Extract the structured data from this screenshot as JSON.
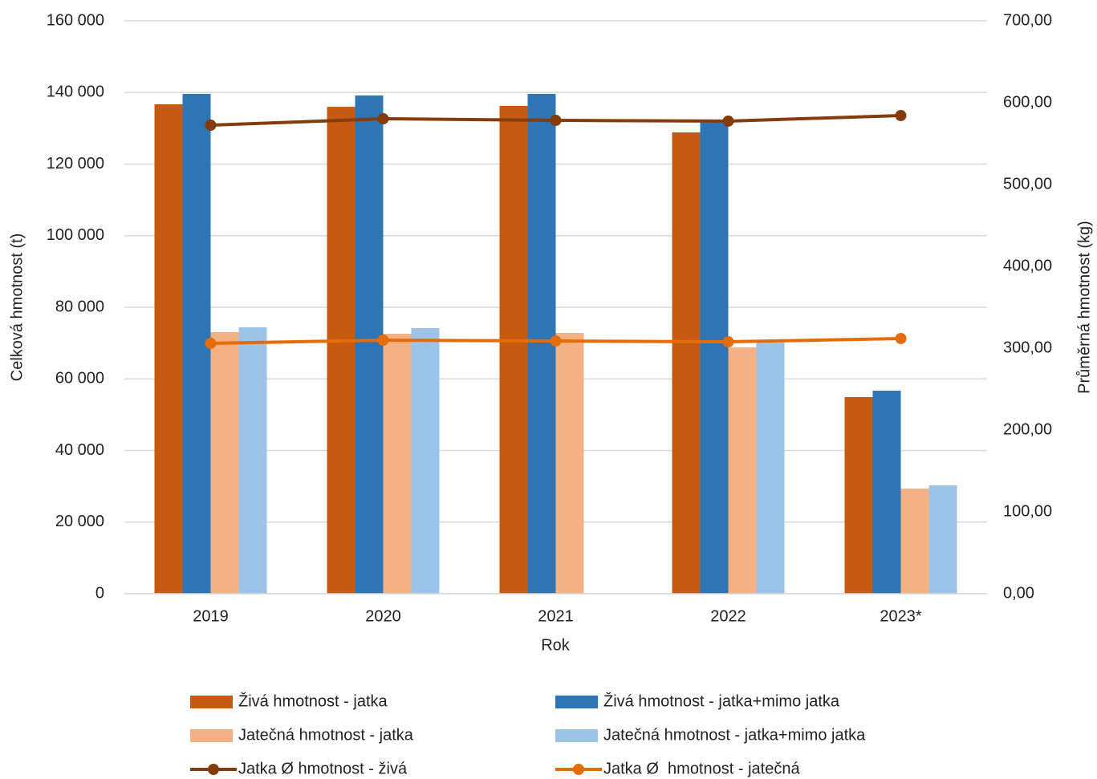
{
  "chart_data": {
    "type": "bar",
    "x_label": "Rok",
    "y_label": "Celková hmotnost (t)",
    "y2_label": "Průměrná hmotnost (kg)",
    "categories": [
      "2019",
      "2020",
      "2021",
      "2022",
      "2023*"
    ],
    "ylim": [
      0,
      160000
    ],
    "yticks": [
      0,
      {
        "value": 20000,
        "label": "20 000"
      },
      {
        "value": 40000,
        "label": "40 000"
      },
      {
        "value": 60000,
        "label": "60 000"
      },
      {
        "value": 80000,
        "label": "80 000"
      },
      {
        "value": 100000,
        "label": "100 000"
      },
      {
        "value": 120000,
        "label": "120 000"
      },
      {
        "value": 140000,
        "label": "140 000"
      },
      {
        "value": 160000,
        "label": "160 000"
      }
    ],
    "y2lim": [
      0,
      700
    ],
    "y2ticks": [
      {
        "value": 0,
        "label": "0,00"
      },
      {
        "value": 100,
        "label": "100,00"
      },
      {
        "value": 200,
        "label": "200,00"
      },
      {
        "value": 300,
        "label": "300,00"
      },
      {
        "value": 400,
        "label": "400,00"
      },
      {
        "value": 500,
        "label": "500,00"
      },
      {
        "value": 600,
        "label": "600,00"
      },
      {
        "value": 700,
        "label": "700,00"
      }
    ],
    "grid": true,
    "legend": "bottom",
    "series": [
      {
        "name": "Živá hmotnost - jatka",
        "type": "bar",
        "color": "#c55a11",
        "values": [
          136700,
          136000,
          136250,
          128850,
          54900
        ]
      },
      {
        "name": "Živá hmotnost - jatka+mimo jatka",
        "type": "bar",
        "color": "#2e75b6",
        "values": [
          139600,
          139150,
          139600,
          131760,
          56700
        ]
      },
      {
        "name": "Jatečná hmotnost - jatka",
        "type": "bar",
        "color": "#f4b183",
        "values": [
          73050,
          72600,
          72830,
          68800,
          29350
        ]
      },
      {
        "name": "Jatečná hmotnost - jatka+mimo jatka",
        "type": "bar",
        "color": "#9dc3e6",
        "values": [
          74400,
          74170,
          null,
          70140,
          30250
        ]
      },
      {
        "name": "Jatka Ø hmotnost - živá",
        "type": "line",
        "axis": "y2",
        "color": "#843c0c",
        "values": [
          572.5,
          580.4,
          578.4,
          577.5,
          584.3
        ]
      },
      {
        "name": "Jatka Ø  hmotnost - jatečná",
        "type": "line",
        "axis": "y2",
        "color": "#e46c0a",
        "values": [
          305.9,
          309.8,
          308.8,
          307.8,
          311.8
        ]
      }
    ]
  }
}
